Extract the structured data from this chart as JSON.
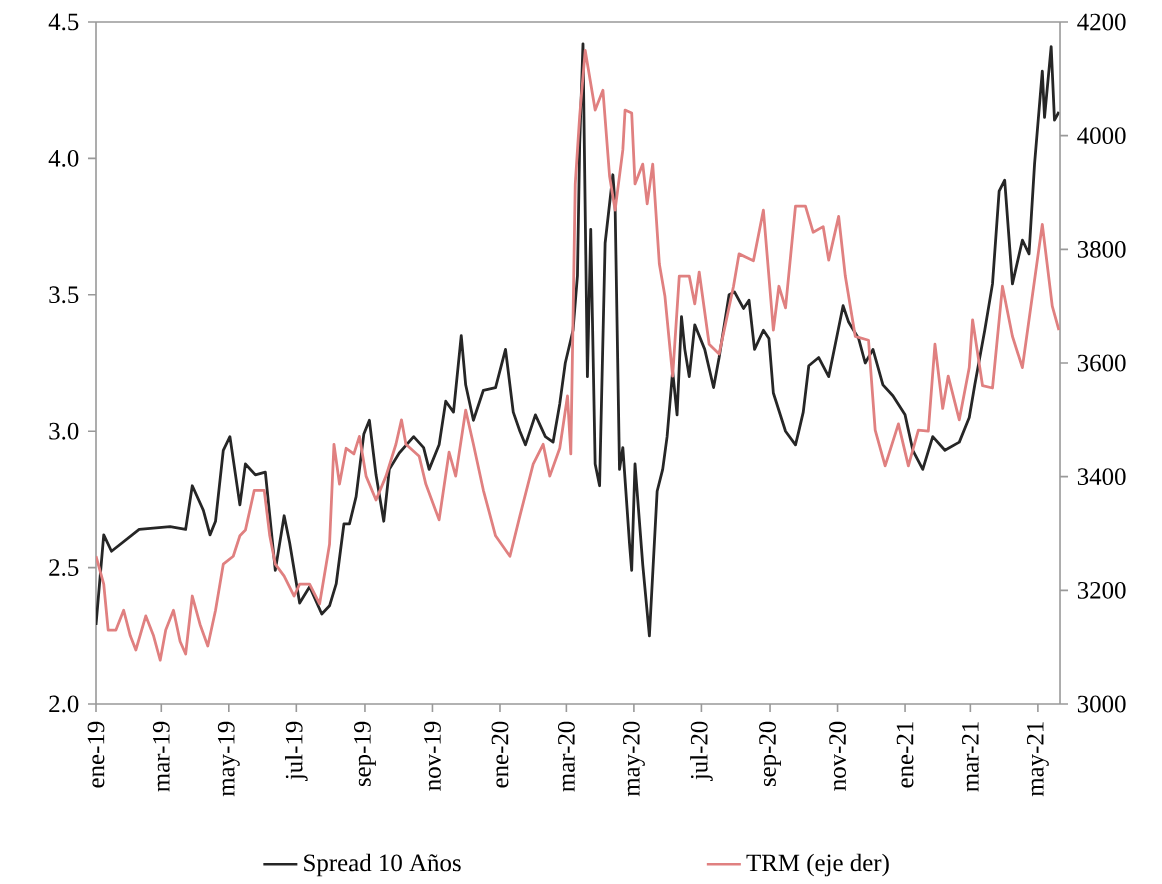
{
  "chart_data": {
    "type": "line",
    "xlim": [
      "2019-01-01",
      "2021-05-21"
    ],
    "xticks": [
      {
        "value": "2019-01-01",
        "label": "ene-19"
      },
      {
        "value": "2019-03-01",
        "label": "mar-19"
      },
      {
        "value": "2019-05-01",
        "label": "may-19"
      },
      {
        "value": "2019-07-01",
        "label": "jul-19"
      },
      {
        "value": "2019-09-01",
        "label": "sep-19"
      },
      {
        "value": "2019-11-01",
        "label": "nov-19"
      },
      {
        "value": "2020-01-01",
        "label": "ene-20"
      },
      {
        "value": "2020-03-01",
        "label": "mar-20"
      },
      {
        "value": "2020-05-01",
        "label": "may-20"
      },
      {
        "value": "2020-07-01",
        "label": "jul-20"
      },
      {
        "value": "2020-09-01",
        "label": "sep-20"
      },
      {
        "value": "2020-11-01",
        "label": "nov-20"
      },
      {
        "value": "2021-01-01",
        "label": "ene-21"
      },
      {
        "value": "2021-03-01",
        "label": "mar-21"
      },
      {
        "value": "2021-05-01",
        "label": "may-21"
      }
    ],
    "ylim": [
      2.0,
      4.5
    ],
    "yticks": [
      {
        "value": 2.0,
        "label": "2.0"
      },
      2.5,
      {
        "value": 3.0,
        "label": "3.0"
      },
      3.5,
      {
        "value": 4.0,
        "label": "4.0"
      },
      4.5
    ],
    "y2lim": [
      3000,
      4200
    ],
    "y2ticks": [
      3000,
      3200,
      3400,
      3600,
      3800,
      4000,
      4200
    ],
    "legend": "bottom",
    "grid": false,
    "series": [
      {
        "name": "Spread 10 Años",
        "color": "#262626",
        "x": [
          "2019-01-01",
          "2019-01-08",
          "2019-01-15",
          "2019-02-09",
          "2019-03-09",
          "2019-03-23",
          "2019-03-29",
          "2019-04-08",
          "2019-04-14",
          "2019-04-19",
          "2019-04-26",
          "2019-05-02",
          "2019-05-11",
          "2019-05-16",
          "2019-05-25",
          "2019-06-03",
          "2019-06-07",
          "2019-06-12",
          "2019-06-20",
          "2019-06-25",
          "2019-07-04",
          "2019-07-13",
          "2019-07-24",
          "2019-07-31",
          "2019-08-06",
          "2019-08-13",
          "2019-08-18",
          "2019-08-24",
          "2019-08-31",
          "2019-09-05",
          "2019-09-11",
          "2019-09-18",
          "2019-09-23",
          "2019-10-02",
          "2019-10-15",
          "2019-10-24",
          "2019-10-29",
          "2019-11-07",
          "2019-11-13",
          "2019-11-20",
          "2019-11-27",
          "2019-12-01",
          "2019-12-08",
          "2019-12-17",
          "2019-12-28",
          "2020-01-06",
          "2020-01-13",
          "2020-01-19",
          "2020-01-24",
          "2020-02-02",
          "2020-02-11",
          "2020-02-18",
          "2020-02-24",
          "2020-02-29",
          "2020-03-07",
          "2020-03-11",
          "2020-03-13",
          "2020-03-16",
          "2020-03-20",
          "2020-03-23",
          "2020-03-27",
          "2020-03-31",
          "2020-04-05",
          "2020-04-12",
          "2020-04-14",
          "2020-04-18",
          "2020-04-21",
          "2020-04-27",
          "2020-04-29",
          "2020-05-02",
          "2020-05-09",
          "2020-05-15",
          "2020-05-22",
          "2020-05-27",
          "2020-05-31",
          "2020-06-05",
          "2020-06-09",
          "2020-06-13",
          "2020-06-16",
          "2020-06-20",
          "2020-06-25",
          "2020-07-04",
          "2020-07-12",
          "2020-07-17",
          "2020-07-26",
          "2020-07-31",
          "2020-08-08",
          "2020-08-13",
          "2020-08-18",
          "2020-08-26",
          "2020-08-31",
          "2020-09-04",
          "2020-09-15",
          "2020-09-24",
          "2020-09-27",
          "2020-10-01",
          "2020-10-06",
          "2020-10-15",
          "2020-10-24",
          "2020-10-30",
          "2020-11-06",
          "2020-11-11",
          "2020-11-20",
          "2020-11-26",
          "2020-12-03",
          "2020-12-12",
          "2020-12-21",
          "2021-01-01",
          "2021-01-08",
          "2021-01-17",
          "2021-01-26",
          "2021-02-06",
          "2021-02-19",
          "2021-02-28",
          "2021-03-05",
          "2021-03-14",
          "2021-03-21",
          "2021-03-27",
          "2021-04-01",
          "2021-04-08",
          "2021-04-17",
          "2021-04-23",
          "2021-04-28",
          "2021-05-05",
          "2021-05-07",
          "2021-05-13",
          "2021-05-16",
          "2021-05-20"
        ],
        "values": [
          2.29,
          2.62,
          2.56,
          2.64,
          2.65,
          2.64,
          2.8,
          2.71,
          2.62,
          2.67,
          2.93,
          2.98,
          2.73,
          2.88,
          2.84,
          2.85,
          2.69,
          2.49,
          2.69,
          2.59,
          2.37,
          2.43,
          2.33,
          2.36,
          2.44,
          2.66,
          2.66,
          2.76,
          2.99,
          3.04,
          2.84,
          2.67,
          2.86,
          2.92,
          2.98,
          2.94,
          2.86,
          2.95,
          3.11,
          3.07,
          3.35,
          3.17,
          3.04,
          3.15,
          3.16,
          3.3,
          3.07,
          3.0,
          2.95,
          3.06,
          2.98,
          2.96,
          3.1,
          3.25,
          3.37,
          3.57,
          4.05,
          4.42,
          3.2,
          3.74,
          2.88,
          2.8,
          3.69,
          3.94,
          3.83,
          2.86,
          2.94,
          2.59,
          2.49,
          2.88,
          2.51,
          2.25,
          2.78,
          2.86,
          2.98,
          3.22,
          3.06,
          3.42,
          3.3,
          3.2,
          3.39,
          3.3,
          3.16,
          3.27,
          3.5,
          3.51,
          3.45,
          3.48,
          3.3,
          3.37,
          3.34,
          3.14,
          3.0,
          2.95,
          3.0,
          3.07,
          3.24,
          3.27,
          3.2,
          3.32,
          3.46,
          3.4,
          3.34,
          3.25,
          3.3,
          3.17,
          3.13,
          3.06,
          2.93,
          2.86,
          2.98,
          2.93,
          2.96,
          3.05,
          3.17,
          3.37,
          3.54,
          3.88,
          3.92,
          3.54,
          3.7,
          3.65,
          3.98,
          4.32,
          4.15,
          4.41,
          4.14,
          4.17
        ]
      },
      {
        "name": "TRM (eje der)",
        "color": "#e08080",
        "axis": "y2",
        "x": [
          "2019-01-01",
          "2019-01-08",
          "2019-01-12",
          "2019-01-19",
          "2019-01-26",
          "2019-02-01",
          "2019-02-06",
          "2019-02-15",
          "2019-02-22",
          "2019-02-28",
          "2019-03-05",
          "2019-03-12",
          "2019-03-18",
          "2019-03-23",
          "2019-03-29",
          "2019-04-05",
          "2019-04-12",
          "2019-04-19",
          "2019-04-26",
          "2019-05-05",
          "2019-05-11",
          "2019-05-16",
          "2019-05-24",
          "2019-06-02",
          "2019-06-07",
          "2019-06-12",
          "2019-06-20",
          "2019-06-29",
          "2019-07-04",
          "2019-07-13",
          "2019-07-22",
          "2019-07-28",
          "2019-07-31",
          "2019-08-04",
          "2019-08-09",
          "2019-08-15",
          "2019-08-22",
          "2019-08-27",
          "2019-09-02",
          "2019-09-11",
          "2019-09-20",
          "2019-09-29",
          "2019-10-04",
          "2019-10-08",
          "2019-10-20",
          "2019-10-26",
          "2019-11-07",
          "2019-11-16",
          "2019-11-22",
          "2019-12-01",
          "2019-12-08",
          "2019-12-17",
          "2019-12-28",
          "2020-01-10",
          "2020-01-19",
          "2020-01-31",
          "2020-02-09",
          "2020-02-15",
          "2020-02-24",
          "2020-03-02",
          "2020-03-05",
          "2020-03-09",
          "2020-03-13",
          "2020-03-18",
          "2020-03-27",
          "2020-04-03",
          "2020-04-09",
          "2020-04-14",
          "2020-04-21",
          "2020-04-23",
          "2020-04-29",
          "2020-05-02",
          "2020-05-09",
          "2020-05-13",
          "2020-05-18",
          "2020-05-24",
          "2020-05-29",
          "2020-06-05",
          "2020-06-11",
          "2020-06-20",
          "2020-06-25",
          "2020-06-29",
          "2020-07-08",
          "2020-07-17",
          "2020-07-30",
          "2020-08-04",
          "2020-08-17",
          "2020-08-26",
          "2020-09-04",
          "2020-09-09",
          "2020-09-15",
          "2020-09-24",
          "2020-10-03",
          "2020-10-10",
          "2020-10-19",
          "2020-10-24",
          "2020-11-02",
          "2020-11-08",
          "2020-11-17",
          "2020-11-29",
          "2020-12-05",
          "2020-12-14",
          "2020-12-26",
          "2021-01-04",
          "2021-01-13",
          "2021-01-22",
          "2021-01-28",
          "2021-02-04",
          "2021-02-09",
          "2021-02-19",
          "2021-02-28",
          "2021-03-03",
          "2021-03-12",
          "2021-03-21",
          "2021-03-30",
          "2021-04-08",
          "2021-04-17",
          "2021-04-26",
          "2021-05-05",
          "2021-05-14",
          "2021-05-20"
        ],
        "values": [
          3260,
          3211,
          3130,
          3130,
          3165,
          3120,
          3095,
          3155,
          3120,
          3077,
          3130,
          3165,
          3110,
          3088,
          3190,
          3140,
          3102,
          3165,
          3246,
          3260,
          3296,
          3306,
          3376,
          3376,
          3296,
          3246,
          3225,
          3190,
          3211,
          3211,
          3176,
          3246,
          3281,
          3457,
          3387,
          3450,
          3440,
          3471,
          3401,
          3359,
          3401,
          3457,
          3500,
          3457,
          3436,
          3387,
          3324,
          3443,
          3401,
          3517,
          3457,
          3376,
          3296,
          3260,
          3331,
          3422,
          3457,
          3401,
          3450,
          3542,
          3440,
          3915,
          4034,
          4150,
          4045,
          4080,
          3929,
          3869,
          3975,
          4045,
          4040,
          3915,
          3950,
          3880,
          3950,
          3774,
          3718,
          3577,
          3753,
          3753,
          3704,
          3760,
          3633,
          3616,
          3735,
          3792,
          3780,
          3869,
          3658,
          3735,
          3697,
          3876,
          3876,
          3830,
          3840,
          3781,
          3858,
          3753,
          3647,
          3640,
          3482,
          3419,
          3493,
          3419,
          3482,
          3480,
          3633,
          3520,
          3577,
          3500,
          3592,
          3676,
          3560,
          3556,
          3735,
          3647,
          3592,
          3718,
          3844,
          3700,
          3658
        ]
      }
    ]
  }
}
